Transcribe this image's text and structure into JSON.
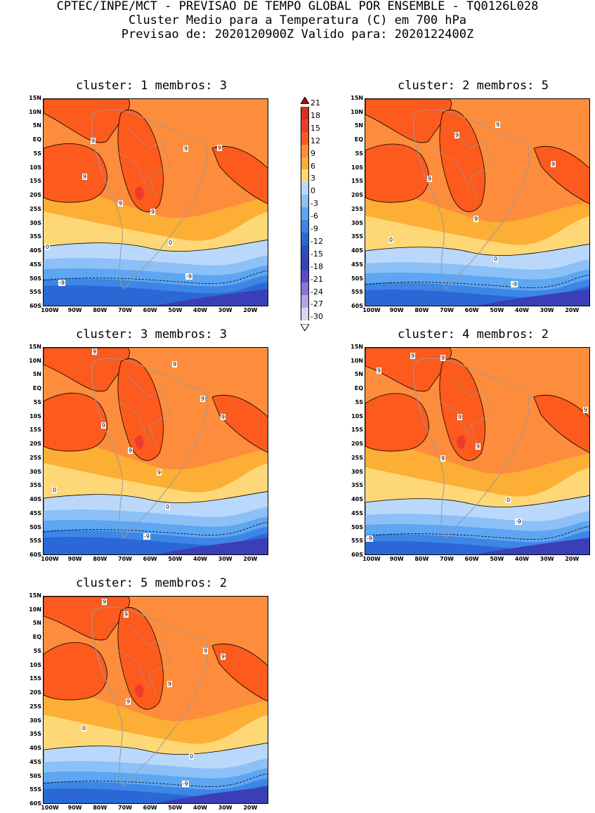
{
  "header": {
    "line1": "CPTEC/INPE/MCT - PREVISAO DE TEMPO GLOBAL POR ENSEMBLE - TQ0126L028",
    "line2": "Cluster Medio para a Temperatura (C) em 700 hPa",
    "line3": "Previsao de: 2020120900Z   Valido para: 2020122400Z"
  },
  "panels": [
    {
      "title": "cluster: 1  membros: 3",
      "labels": [
        "9",
        "9",
        "9",
        "9",
        "9",
        "9",
        "0",
        "0",
        "-9",
        "-9"
      ]
    },
    {
      "title": "cluster: 2  membros: 5",
      "labels": [
        "9",
        "9",
        "9",
        "9",
        "9",
        "0",
        "0",
        "-9"
      ]
    },
    {
      "title": "cluster: 3  membros: 3",
      "labels": [
        "9",
        "9",
        "9",
        "9",
        "9",
        "9",
        "9",
        "0",
        "0",
        "-9"
      ]
    },
    {
      "title": "cluster: 4  membros: 2",
      "labels": [
        "9",
        "9",
        "9",
        "9",
        "9",
        "9",
        "9",
        "0",
        "-9",
        "-9"
      ]
    },
    {
      "title": "cluster: 5  membros: 2",
      "labels": [
        "9",
        "9",
        "9",
        "9",
        "9",
        "9",
        "0",
        "0",
        "-9"
      ]
    }
  ],
  "lat_ticks": [
    "15N",
    "10N",
    "5N",
    "EQ",
    "5S",
    "10S",
    "15S",
    "20S",
    "25S",
    "30S",
    "35S",
    "40S",
    "45S",
    "50S",
    "55S",
    "60S"
  ],
  "lon_ticks": [
    "100W",
    "90W",
    "80W",
    "70W",
    "60W",
    "50W",
    "40W",
    "30W",
    "20W"
  ],
  "colorbar": {
    "labels": [
      "21",
      "18",
      "15",
      "12",
      "9",
      "6",
      "3",
      "0",
      "-3",
      "-6",
      "-9",
      "-12",
      "-15",
      "-18",
      "-21",
      "-24",
      "-27",
      "-30"
    ],
    "colors": [
      "#a50f15",
      "#d7301f",
      "#ef3b2c",
      "#fd5a1e",
      "#fd8d3c",
      "#fdae35",
      "#fed876",
      "#b9d8fb",
      "#8cc0f7",
      "#5ea6f2",
      "#3d86e6",
      "#2b68d6",
      "#2a4fc4",
      "#3a3fb8",
      "#5c4bc9",
      "#8a72d8",
      "#b6a3e6",
      "#dcd3f2"
    ]
  }
}
